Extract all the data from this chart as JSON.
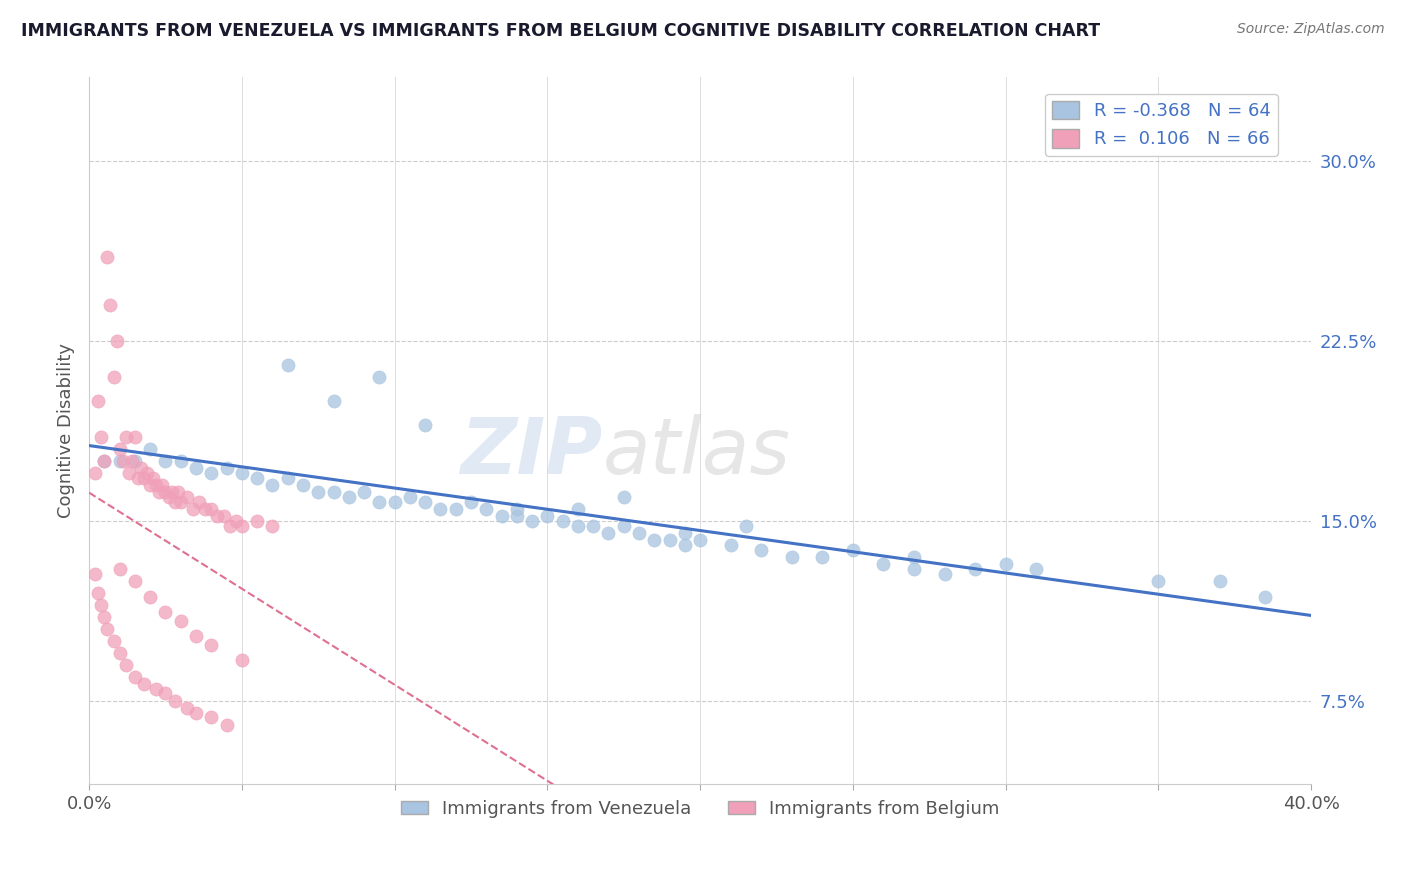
{
  "title": "IMMIGRANTS FROM VENEZUELA VS IMMIGRANTS FROM BELGIUM COGNITIVE DISABILITY CORRELATION CHART",
  "source": "Source: ZipAtlas.com",
  "ylabel": "Cognitive Disability",
  "ytick_vals": [
    0.075,
    0.15,
    0.225,
    0.3
  ],
  "xlim": [
    0.0,
    0.4
  ],
  "ylim": [
    0.04,
    0.335
  ],
  "R_venezuela": -0.368,
  "N_venezuela": 64,
  "R_belgium": 0.106,
  "N_belgium": 66,
  "color_venezuela": "#a8c4e0",
  "color_belgium": "#f0a0b8",
  "line_color_venezuela": "#4472c4",
  "line_color_belgium": "#e07090",
  "watermark_zip": "ZIP",
  "watermark_atlas": "atlas",
  "venezuela_x": [
    0.005,
    0.01,
    0.015,
    0.02,
    0.025,
    0.03,
    0.035,
    0.04,
    0.045,
    0.05,
    0.055,
    0.06,
    0.065,
    0.07,
    0.075,
    0.08,
    0.085,
    0.09,
    0.095,
    0.1,
    0.105,
    0.11,
    0.115,
    0.12,
    0.125,
    0.13,
    0.135,
    0.14,
    0.145,
    0.15,
    0.155,
    0.16,
    0.165,
    0.17,
    0.175,
    0.18,
    0.185,
    0.19,
    0.195,
    0.2,
    0.21,
    0.22,
    0.23,
    0.24,
    0.25,
    0.26,
    0.27,
    0.28,
    0.29,
    0.3,
    0.065,
    0.08,
    0.095,
    0.11,
    0.14,
    0.16,
    0.175,
    0.195,
    0.215,
    0.27,
    0.31,
    0.35,
    0.37,
    0.385
  ],
  "venezuela_y": [
    0.175,
    0.175,
    0.175,
    0.18,
    0.175,
    0.175,
    0.172,
    0.17,
    0.172,
    0.17,
    0.168,
    0.165,
    0.168,
    0.165,
    0.162,
    0.162,
    0.16,
    0.162,
    0.158,
    0.158,
    0.16,
    0.158,
    0.155,
    0.155,
    0.158,
    0.155,
    0.152,
    0.152,
    0.15,
    0.152,
    0.15,
    0.148,
    0.148,
    0.145,
    0.148,
    0.145,
    0.142,
    0.142,
    0.14,
    0.142,
    0.14,
    0.138,
    0.135,
    0.135,
    0.138,
    0.132,
    0.13,
    0.128,
    0.13,
    0.132,
    0.215,
    0.2,
    0.21,
    0.19,
    0.155,
    0.155,
    0.16,
    0.145,
    0.148,
    0.135,
    0.13,
    0.125,
    0.125,
    0.118
  ],
  "belgium_x": [
    0.002,
    0.003,
    0.004,
    0.005,
    0.006,
    0.007,
    0.008,
    0.009,
    0.01,
    0.011,
    0.012,
    0.013,
    0.014,
    0.015,
    0.016,
    0.017,
    0.018,
    0.019,
    0.02,
    0.021,
    0.022,
    0.023,
    0.024,
    0.025,
    0.026,
    0.027,
    0.028,
    0.029,
    0.03,
    0.032,
    0.034,
    0.036,
    0.038,
    0.04,
    0.042,
    0.044,
    0.046,
    0.048,
    0.05,
    0.055,
    0.06,
    0.002,
    0.003,
    0.004,
    0.005,
    0.006,
    0.008,
    0.01,
    0.012,
    0.015,
    0.018,
    0.022,
    0.025,
    0.028,
    0.032,
    0.035,
    0.04,
    0.045,
    0.01,
    0.015,
    0.02,
    0.025,
    0.03,
    0.035,
    0.04,
    0.05
  ],
  "belgium_y": [
    0.17,
    0.2,
    0.185,
    0.175,
    0.26,
    0.24,
    0.21,
    0.225,
    0.18,
    0.175,
    0.185,
    0.17,
    0.175,
    0.185,
    0.168,
    0.172,
    0.168,
    0.17,
    0.165,
    0.168,
    0.165,
    0.162,
    0.165,
    0.162,
    0.16,
    0.162,
    0.158,
    0.162,
    0.158,
    0.16,
    0.155,
    0.158,
    0.155,
    0.155,
    0.152,
    0.152,
    0.148,
    0.15,
    0.148,
    0.15,
    0.148,
    0.128,
    0.12,
    0.115,
    0.11,
    0.105,
    0.1,
    0.095,
    0.09,
    0.085,
    0.082,
    0.08,
    0.078,
    0.075,
    0.072,
    0.07,
    0.068,
    0.065,
    0.13,
    0.125,
    0.118,
    0.112,
    0.108,
    0.102,
    0.098,
    0.092
  ]
}
